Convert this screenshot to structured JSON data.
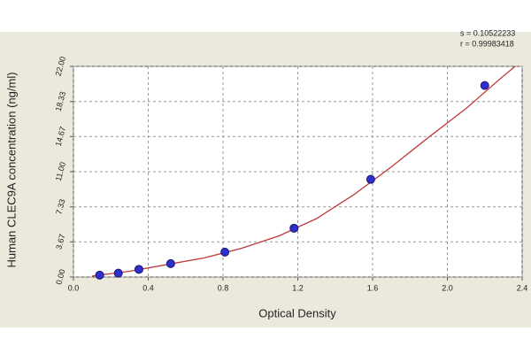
{
  "chart_data": {
    "type": "scatter",
    "x_label": "Optical Density",
    "y_label": "Human CLEC9A concentration (ng/ml)",
    "annotations": [
      "s = 0.10522233",
      "r = 0.99983418"
    ],
    "xlim": [
      0,
      2.4
    ],
    "ylim": [
      0,
      22
    ],
    "xticks": [
      {
        "value": 0,
        "label": "0.0"
      },
      0.4,
      0.8,
      1.2,
      1.6,
      {
        "value": 2,
        "label": "2.0"
      },
      2.4
    ],
    "yticks": [
      {
        "value": 0,
        "label": "0.00"
      },
      3.67,
      7.33,
      {
        "value": 11,
        "label": "11.00"
      },
      14.67,
      18.33,
      {
        "value": 22,
        "label": "22.00"
      }
    ],
    "grid": true,
    "series": [
      {
        "mode": "line",
        "color": "#c0393b",
        "x": [
          0.1,
          0.3,
          0.5,
          0.7,
          0.9,
          1.1,
          1.3,
          1.5,
          1.7,
          1.9,
          2.1,
          2.3,
          2.4
        ],
        "values": [
          0.1,
          0.6,
          1.3,
          2.0,
          3.0,
          4.3,
          6.1,
          8.6,
          11.5,
          14.6,
          17.6,
          21.0,
          22.6
        ]
      },
      {
        "mode": "markers",
        "color": "#2f2fd0",
        "x": [
          0.14,
          0.24,
          0.35,
          0.52,
          0.81,
          1.18,
          1.59,
          2.2
        ],
        "values": [
          0.2,
          0.4,
          0.8,
          1.4,
          2.6,
          5.1,
          10.2,
          20
        ]
      }
    ]
  }
}
